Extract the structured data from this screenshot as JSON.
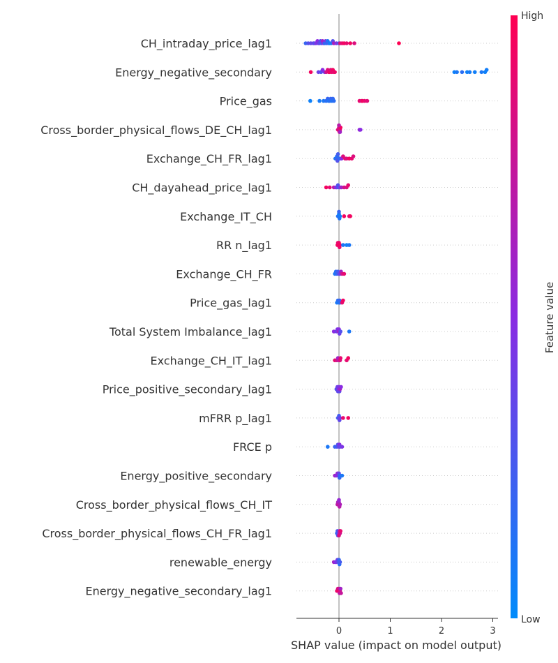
{
  "chart_data": {
    "type": "scatter",
    "subtype": "shap-beeswarm",
    "xlabel": "SHAP value (impact on model output)",
    "xlim": [
      -0.8,
      3.05
    ],
    "xticks": [
      0,
      1,
      2,
      3
    ],
    "grid": "dotted horizontal row lines",
    "colorbar": {
      "title": "Feature value",
      "high_label": "High",
      "low_label": "Low",
      "high_color": "#ff0052",
      "mid_color": "#8a2be2",
      "low_color": "#008bfb",
      "placement": "right"
    },
    "features": [
      {
        "name": "CH_intraday_price_lag1",
        "points": [
          [
            -0.65,
            0.2
          ],
          [
            -0.6,
            0.3
          ],
          [
            -0.55,
            0.35
          ],
          [
            -0.5,
            0.4
          ],
          [
            -0.48,
            0.3
          ],
          [
            -0.45,
            0.45
          ],
          [
            -0.42,
            0.5
          ],
          [
            -0.4,
            0.4
          ],
          [
            -0.38,
            0.35
          ],
          [
            -0.36,
            0.3
          ],
          [
            -0.34,
            0.25
          ],
          [
            -0.32,
            0.6
          ],
          [
            -0.3,
            0.5
          ],
          [
            -0.28,
            0.15
          ],
          [
            -0.26,
            0.4
          ],
          [
            -0.24,
            0.2
          ],
          [
            -0.22,
            0.1
          ],
          [
            -0.2,
            0.2
          ],
          [
            -0.18,
            0.05
          ],
          [
            -0.15,
            0.1
          ],
          [
            -0.12,
            0.3
          ],
          [
            -0.1,
            0.65
          ],
          [
            -0.05,
            0.45
          ],
          [
            0.0,
            0.2
          ],
          [
            0.02,
            0.85
          ],
          [
            0.06,
            0.9
          ],
          [
            0.1,
            0.95
          ],
          [
            0.15,
            0.9
          ],
          [
            0.22,
            0.95
          ],
          [
            0.3,
            0.85
          ],
          [
            1.17,
            1.0
          ]
        ]
      },
      {
        "name": "Energy_negative_secondary",
        "points": [
          [
            -0.55,
            0.95
          ],
          [
            -0.4,
            0.4
          ],
          [
            -0.35,
            0.3
          ],
          [
            -0.32,
            0.5
          ],
          [
            -0.28,
            0.45
          ],
          [
            -0.25,
            0.8
          ],
          [
            -0.22,
            0.85
          ],
          [
            -0.2,
            0.9
          ],
          [
            -0.18,
            0.95
          ],
          [
            -0.16,
            0.85
          ],
          [
            -0.14,
            0.9
          ],
          [
            -0.12,
            0.95
          ],
          [
            -0.1,
            0.88
          ],
          [
            -0.08,
            0.92
          ],
          [
            2.25,
            0.05
          ],
          [
            2.3,
            0.1
          ],
          [
            2.4,
            0.15
          ],
          [
            2.5,
            0.05
          ],
          [
            2.55,
            0.08
          ],
          [
            2.65,
            0.06
          ],
          [
            2.78,
            0.1
          ],
          [
            2.85,
            0.05
          ],
          [
            2.88,
            0.07
          ]
        ]
      },
      {
        "name": "Price_gas",
        "points": [
          [
            -0.56,
            0.05
          ],
          [
            -0.38,
            0.08
          ],
          [
            -0.3,
            0.1
          ],
          [
            -0.25,
            0.15
          ],
          [
            -0.22,
            0.2
          ],
          [
            -0.2,
            0.1
          ],
          [
            -0.18,
            0.15
          ],
          [
            -0.16,
            0.2
          ],
          [
            -0.14,
            0.12
          ],
          [
            -0.12,
            0.18
          ],
          [
            -0.1,
            0.15
          ],
          [
            0.4,
            0.9
          ],
          [
            0.44,
            0.85
          ],
          [
            0.46,
            0.95
          ],
          [
            0.5,
            0.9
          ],
          [
            0.55,
            0.88
          ]
        ]
      },
      {
        "name": "Cross_border_physical_flows_DE_CH_lag1",
        "points": [
          [
            -0.02,
            0.9
          ],
          [
            -0.01,
            0.85
          ],
          [
            0.0,
            0.8
          ],
          [
            0.01,
            0.9
          ],
          [
            0.02,
            0.85
          ],
          [
            0.03,
            0.95
          ],
          [
            0.0,
            0.7
          ],
          [
            0.02,
            0.6
          ],
          [
            0.4,
            0.55
          ],
          [
            0.42,
            0.5
          ]
        ]
      },
      {
        "name": "Exchange_CH_FR_lag1",
        "points": [
          [
            -0.07,
            0.1
          ],
          [
            -0.05,
            0.2
          ],
          [
            -0.04,
            0.15
          ],
          [
            -0.03,
            0.3
          ],
          [
            -0.02,
            0.25
          ],
          [
            0.0,
            0.2
          ],
          [
            0.02,
            0.15
          ],
          [
            0.05,
            0.5
          ],
          [
            0.08,
            0.85
          ],
          [
            0.12,
            0.9
          ],
          [
            0.15,
            0.85
          ],
          [
            0.2,
            0.95
          ],
          [
            0.25,
            0.9
          ],
          [
            0.28,
            0.85
          ]
        ]
      },
      {
        "name": "CH_dayahead_price_lag1",
        "points": [
          [
            -0.25,
            0.95
          ],
          [
            -0.18,
            0.9
          ],
          [
            -0.1,
            0.7
          ],
          [
            -0.06,
            0.5
          ],
          [
            -0.04,
            0.4
          ],
          [
            -0.02,
            0.3
          ],
          [
            0.0,
            0.2
          ],
          [
            0.02,
            0.45
          ],
          [
            0.05,
            0.6
          ],
          [
            0.1,
            0.8
          ],
          [
            0.15,
            0.85
          ],
          [
            0.18,
            0.9
          ]
        ]
      },
      {
        "name": "Exchange_IT_CH",
        "points": [
          [
            -0.02,
            0.1
          ],
          [
            -0.01,
            0.15
          ],
          [
            0.0,
            0.05
          ],
          [
            0.01,
            0.12
          ],
          [
            0.02,
            0.08
          ],
          [
            0.0,
            0.2
          ],
          [
            0.1,
            0.95
          ],
          [
            0.2,
            0.9
          ],
          [
            0.22,
            0.95
          ]
        ]
      },
      {
        "name": "RR n_lag1",
        "points": [
          [
            -0.03,
            0.95
          ],
          [
            -0.02,
            0.9
          ],
          [
            -0.01,
            0.95
          ],
          [
            0.0,
            0.92
          ],
          [
            0.01,
            0.9
          ],
          [
            0.02,
            0.95
          ],
          [
            0.08,
            0.1
          ],
          [
            0.15,
            0.05
          ],
          [
            0.2,
            0.1
          ]
        ]
      },
      {
        "name": "Exchange_CH_FR",
        "points": [
          [
            -0.08,
            0.1
          ],
          [
            -0.06,
            0.15
          ],
          [
            -0.04,
            0.2
          ],
          [
            -0.02,
            0.25
          ],
          [
            0.0,
            0.3
          ],
          [
            0.02,
            0.4
          ],
          [
            0.04,
            0.6
          ],
          [
            0.06,
            0.8
          ],
          [
            0.1,
            0.9
          ]
        ]
      },
      {
        "name": "Price_gas_lag1",
        "points": [
          [
            -0.04,
            0.1
          ],
          [
            -0.02,
            0.15
          ],
          [
            0.0,
            0.1
          ],
          [
            0.01,
            0.2
          ],
          [
            0.02,
            0.15
          ],
          [
            0.06,
            0.9
          ],
          [
            0.08,
            0.95
          ]
        ]
      },
      {
        "name": "Total System Imbalance_lag1",
        "points": [
          [
            -0.1,
            0.5
          ],
          [
            -0.05,
            0.4
          ],
          [
            -0.03,
            0.45
          ],
          [
            -0.01,
            0.6
          ],
          [
            0.0,
            0.5
          ],
          [
            0.01,
            0.4
          ],
          [
            0.03,
            0.3
          ],
          [
            0.2,
            0.1
          ]
        ]
      },
      {
        "name": "Exchange_CH_IT_lag1",
        "points": [
          [
            -0.08,
            0.9
          ],
          [
            -0.04,
            0.8
          ],
          [
            -0.02,
            0.6
          ],
          [
            0.0,
            0.7
          ],
          [
            0.02,
            0.85
          ],
          [
            0.03,
            0.9
          ],
          [
            0.15,
            0.9
          ],
          [
            0.18,
            0.95
          ]
        ]
      },
      {
        "name": "Price_positive_secondary_lag1",
        "points": [
          [
            -0.05,
            0.3
          ],
          [
            -0.03,
            0.4
          ],
          [
            -0.02,
            0.35
          ],
          [
            -0.01,
            0.5
          ],
          [
            0.0,
            0.45
          ],
          [
            0.01,
            0.35
          ],
          [
            0.02,
            0.6
          ],
          [
            0.04,
            0.5
          ]
        ]
      },
      {
        "name": "mFRR p_lag1",
        "points": [
          [
            -0.02,
            0.2
          ],
          [
            -0.01,
            0.3
          ],
          [
            0.0,
            0.25
          ],
          [
            0.01,
            0.35
          ],
          [
            0.02,
            0.4
          ],
          [
            0.08,
            0.9
          ],
          [
            0.18,
            0.95
          ]
        ]
      },
      {
        "name": "FRCE p",
        "points": [
          [
            -0.22,
            0.1
          ],
          [
            -0.08,
            0.2
          ],
          [
            -0.04,
            0.25
          ],
          [
            -0.02,
            0.3
          ],
          [
            0.0,
            0.4
          ],
          [
            0.01,
            0.5
          ],
          [
            0.02,
            0.35
          ],
          [
            0.06,
            0.45
          ]
        ]
      },
      {
        "name": "Energy_positive_secondary",
        "points": [
          [
            -0.08,
            0.6
          ],
          [
            -0.05,
            0.5
          ],
          [
            -0.03,
            0.55
          ],
          [
            -0.01,
            0.45
          ],
          [
            0.0,
            0.35
          ],
          [
            0.01,
            0.2
          ],
          [
            0.02,
            0.15
          ],
          [
            0.06,
            0.1
          ]
        ]
      },
      {
        "name": "Cross_border_physical_flows_CH_IT",
        "points": [
          [
            -0.03,
            0.7
          ],
          [
            -0.02,
            0.65
          ],
          [
            -0.01,
            0.75
          ],
          [
            0.0,
            0.6
          ],
          [
            0.01,
            0.7
          ],
          [
            0.02,
            0.65
          ],
          [
            0.0,
            0.55
          ]
        ]
      },
      {
        "name": "Cross_border_physical_flows_CH_FR_lag1",
        "points": [
          [
            -0.04,
            0.2
          ],
          [
            -0.03,
            0.25
          ],
          [
            -0.02,
            0.3
          ],
          [
            0.0,
            0.5
          ],
          [
            0.01,
            0.7
          ],
          [
            0.02,
            0.8
          ],
          [
            0.03,
            0.9
          ],
          [
            0.0,
            0.85
          ]
        ]
      },
      {
        "name": "renewable_energy",
        "points": [
          [
            -0.1,
            0.6
          ],
          [
            -0.07,
            0.5
          ],
          [
            -0.05,
            0.45
          ],
          [
            -0.03,
            0.4
          ],
          [
            -0.01,
            0.3
          ],
          [
            0.0,
            0.2
          ],
          [
            0.01,
            0.15
          ],
          [
            0.02,
            0.25
          ]
        ]
      },
      {
        "name": "Energy_negative_secondary_lag1",
        "points": [
          [
            -0.04,
            0.9
          ],
          [
            -0.02,
            0.85
          ],
          [
            -0.01,
            0.95
          ],
          [
            0.0,
            0.8
          ],
          [
            0.01,
            0.7
          ],
          [
            0.02,
            0.85
          ],
          [
            0.03,
            0.6
          ],
          [
            0.04,
            0.75
          ]
        ]
      }
    ]
  }
}
